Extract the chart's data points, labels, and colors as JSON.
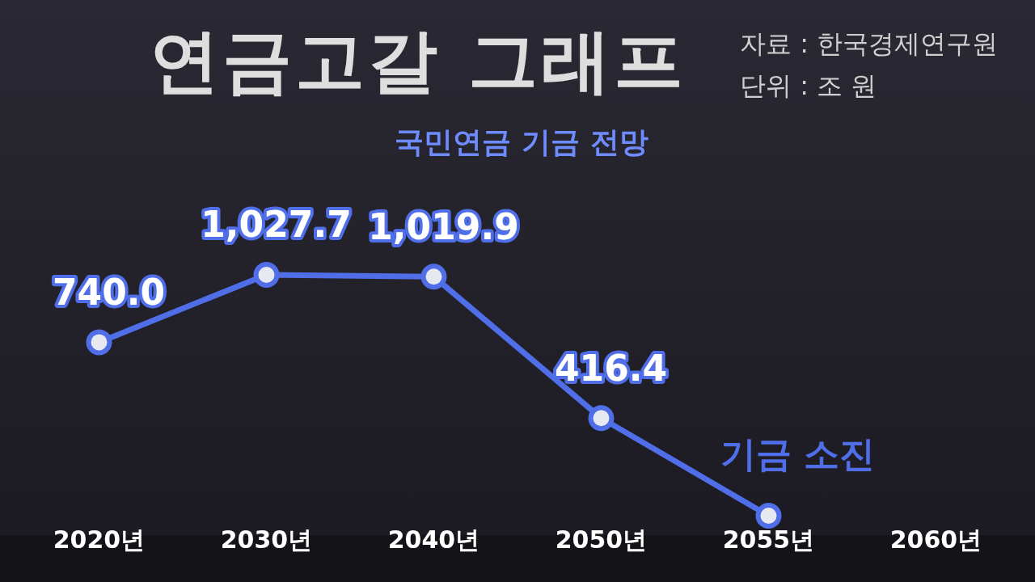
{
  "chart_data": {
    "type": "line",
    "title": "연금고갈 그래프",
    "subtitle": "국민연금 기금 전망",
    "categories": [
      "2020년",
      "2030년",
      "2040년",
      "2050년",
      "2055년",
      "2060년"
    ],
    "series": [
      {
        "color": "#4f6ee8",
        "values": [
          740.0,
          1027.7,
          1019.9,
          416.4,
          0,
          null
        ],
        "value_labels": [
          "740.0",
          "1,027.7",
          "1,019.9",
          "416.4",
          null,
          null
        ]
      }
    ],
    "tick_labels": "x",
    "grid": false,
    "legend": false,
    "marker": "circle",
    "line_style": "solid",
    "annotations": [
      "자료 : 한국경제연구원",
      "단위 : 조 원",
      {
        "text": "기금 소진",
        "x": "2055년",
        "y": 0
      }
    ]
  }
}
